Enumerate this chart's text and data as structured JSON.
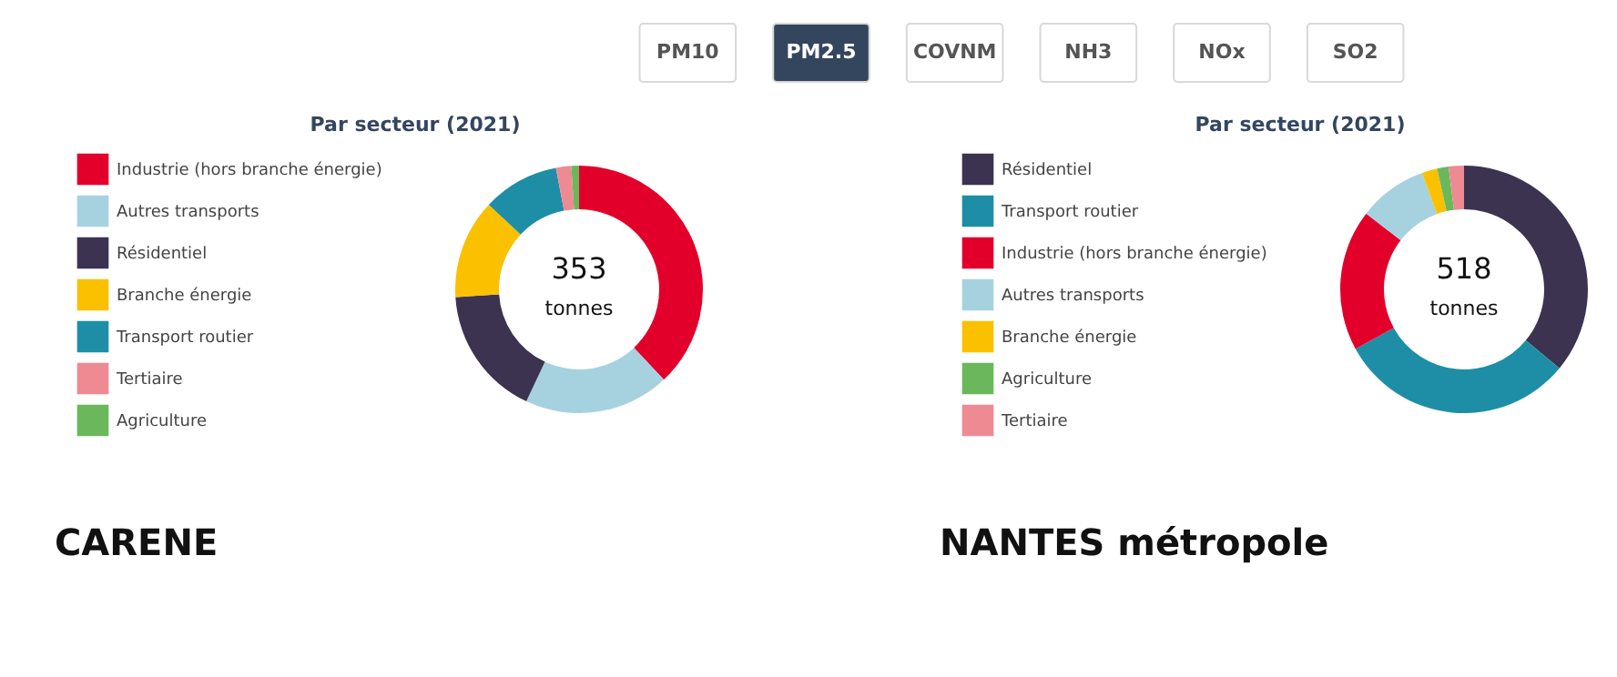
{
  "chart_data": [
    {
      "type": "other",
      "categories": [
        "PM10",
        "PM2.5",
        "COVNM",
        "NH3",
        "NOx",
        "SO2"
      ],
      "colors": [
        "#ffffff",
        "#34465e",
        "#ffffff",
        "#ffffff",
        "#ffffff",
        "#ffffff"
      ]
    },
    {
      "type": "donut",
      "title": "Par secteur (2021)",
      "categories": [
        "Industrie (hors branche énergie)",
        "Autres transports",
        "Résidentiel",
        "Branche énergie",
        "Transport routier",
        "Tertiaire",
        "Agriculture"
      ],
      "values": [
        38,
        19,
        17,
        13,
        10,
        2,
        1
      ],
      "colors": [
        "#e2002b",
        "#a6d2e0",
        "#3c3350",
        "#fbc000",
        "#1e8ea6",
        "#ee8a92",
        "#6bb85c"
      ],
      "legend": "left",
      "annotations": [
        "353",
        "tonnes",
        "CARENE"
      ]
    },
    {
      "type": "donut",
      "title": "Par secteur (2021)",
      "categories": [
        "Résidentiel",
        "Transport routier",
        "Industrie (hors branche énergie)",
        "Autres transports",
        "Branche énergie",
        "Agriculture",
        "Tertiaire"
      ],
      "values": [
        36,
        31,
        18.5,
        9,
        2,
        1.5,
        2
      ],
      "colors": [
        "#3c3350",
        "#1e8ea6",
        "#e2002b",
        "#a6d2e0",
        "#fbc000",
        "#6bb85c",
        "#ee8a92"
      ],
      "legend": "left",
      "annotations": [
        "518",
        "tonnes",
        "NANTES métropole"
      ]
    }
  ]
}
